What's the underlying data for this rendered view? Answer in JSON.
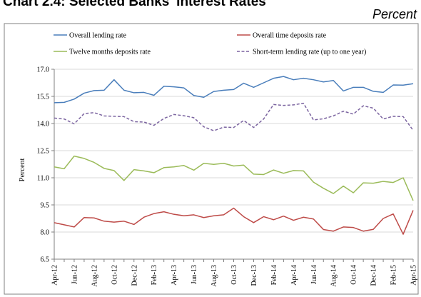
{
  "header": {
    "title": "Chart 2.4: Selected Banks' Interest Rates",
    "unit_label": "Percent"
  },
  "chart_data": {
    "type": "line",
    "title": "Chart 2.4: Selected Banks' Interest Rates",
    "ylabel": "Percent",
    "xlabel": "",
    "ylim": [
      6.5,
      17.0
    ],
    "yticks": [
      "6.5",
      "8.0",
      "9.5",
      "11.0",
      "12.5",
      "14.0",
      "15.5",
      "17.0"
    ],
    "x": [
      "Apr-12",
      "May-12",
      "Jun-12",
      "Jul-12",
      "Aug-12",
      "Sep-12",
      "Oct-12",
      "Nov-12",
      "Dec-12",
      "Jan-13",
      "Feb-13",
      "Mar-13",
      "Apr-13",
      "May-13",
      "Jun-13",
      "Jul-13",
      "Aug-13",
      "Sep-13",
      "Oct-13",
      "Nov-13",
      "Dec-13",
      "Jan-14",
      "Feb-14",
      "Mar-14",
      "Apr-14",
      "May-14",
      "Jun-14",
      "Jul-14",
      "Aug-14",
      "Sep-14",
      "Oct-14",
      "Nov-14",
      "Dec-14",
      "Jan-15",
      "Feb-15",
      "Mar-15",
      "Apr-15"
    ],
    "xtick_labels": [
      "Apr-12",
      "Jun-12",
      "Aug-12",
      "Oct-12",
      "Dec-12",
      "Feb-13",
      "Apr-13",
      "Jun-13",
      "Aug-13",
      "Oct-13",
      "Dec-13",
      "Feb-14",
      "Apr-14",
      "Jun-14",
      "Aug-14",
      "Oct-14",
      "Dec-14",
      "Feb-15",
      "Apr-15"
    ],
    "grid": "horizontal",
    "legend_position": "top",
    "series": [
      {
        "name": "Overall lending rate",
        "color": "#4a7ebb",
        "style": "solid",
        "values": [
          15.15,
          15.17,
          15.35,
          15.68,
          15.82,
          15.84,
          16.42,
          15.84,
          15.7,
          15.72,
          15.56,
          16.06,
          16.03,
          15.97,
          15.55,
          15.45,
          15.77,
          15.84,
          15.88,
          16.23,
          16.0,
          16.25,
          16.5,
          16.6,
          16.42,
          16.5,
          16.42,
          16.3,
          16.38,
          15.8,
          16.0,
          16.0,
          15.78,
          15.72,
          16.13,
          16.12,
          16.2
        ]
      },
      {
        "name": "Overall time deposits rate",
        "color": "#be4b48",
        "style": "solid",
        "values": [
          8.52,
          8.4,
          8.28,
          8.8,
          8.78,
          8.6,
          8.55,
          8.6,
          8.42,
          8.82,
          9.02,
          9.12,
          8.98,
          8.9,
          8.95,
          8.8,
          8.9,
          8.95,
          9.32,
          8.85,
          8.52,
          8.85,
          8.68,
          8.88,
          8.65,
          8.82,
          8.72,
          8.14,
          8.05,
          8.28,
          8.25,
          8.05,
          8.15,
          8.75,
          9.0,
          7.88,
          9.2
        ]
      },
      {
        "name": "Twelve months deposits rate",
        "color": "#9bbb59",
        "style": "solid",
        "values": [
          11.6,
          11.5,
          12.2,
          12.07,
          11.85,
          11.52,
          11.4,
          10.85,
          11.45,
          11.38,
          11.28,
          11.56,
          11.6,
          11.68,
          11.42,
          11.8,
          11.74,
          11.8,
          11.65,
          11.7,
          11.2,
          11.18,
          11.43,
          11.25,
          11.4,
          11.38,
          10.76,
          10.42,
          10.13,
          10.54,
          10.17,
          10.72,
          10.7,
          10.8,
          10.74,
          11.0,
          9.74
        ]
      },
      {
        "name": "Short-term lending rate (up to one year)",
        "color": "#7b64a0",
        "style": "dashed",
        "values": [
          14.3,
          14.25,
          13.98,
          14.55,
          14.6,
          14.42,
          14.4,
          14.38,
          14.1,
          14.08,
          13.9,
          14.28,
          14.5,
          14.43,
          14.32,
          13.82,
          13.6,
          13.8,
          13.78,
          14.17,
          13.78,
          14.25,
          15.05,
          15.0,
          15.03,
          15.12,
          14.2,
          14.26,
          14.42,
          14.68,
          14.52,
          14.98,
          14.85,
          14.25,
          14.4,
          14.38,
          13.62
        ]
      }
    ]
  }
}
